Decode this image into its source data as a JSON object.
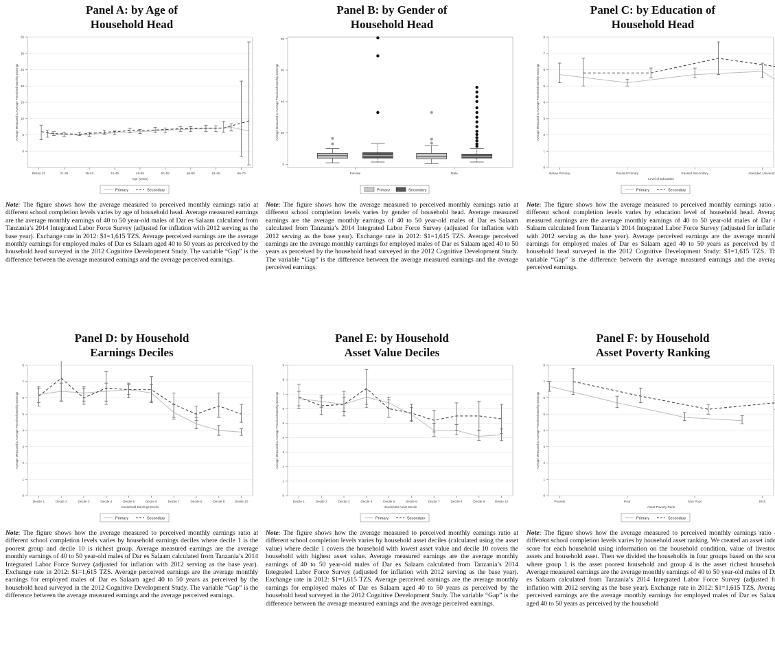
{
  "panels": [
    {
      "id": "A",
      "title_line1": "Panel A: by Age of",
      "title_line2": "Household Head",
      "note_label": "Note",
      "note_text": ": The figure shows how the average measured to perceived monthly earnings ratio at different school completion levels varies by age of household head. Average measured earnings are the average monthly earnings of 40 to 50 year-old males of Dar es Salaam calculated from Tanzania’s 2014 Integrated Labor Force Survey (adjusted for inflation with 2012 serving as the base year). Exchange rate in 2012: $1=1,615 TZS. Average perceived earnings are the average monthly earnings for employed males of Dar es Salaam aged 40 to 50 years as perceived by the household head surveyed in the 2012 Cognitive Development Study. The variable “Gap” is the difference between the average measured earnings and the average perceived earnings."
    },
    {
      "id": "B",
      "title_line1": "Panel B: by Gender of",
      "title_line2": "Household Head",
      "note_label": "Note",
      "note_text": ": The figure shows how the average measured to perceived monthly earnings ratio at different school completion levels varies by gender of household head. Average measured earnings are the average monthly earnings of 40 to 50 year-old males of Dar es Salaam calculated from Tanzania’s 2014 Integrated Labor Force Survey (adjusted for inflation with 2012 serving as the base year). Exchange rate in 2012: $1=1,615 TZS. Average perceived earnings are the average monthly earnings for employed males of Dar es Salaam aged 40 to 50 years as perceived by the household head surveyed in the 2012 Cognitive Development Study. The variable “Gap” is the difference between the average measured earnings and the average perceived earnings."
    },
    {
      "id": "C",
      "title_line1": "Panel C: by Education of",
      "title_line2": "Household Head",
      "note_label": "Note",
      "note_text": ": The figure shows how the average measured to perceived monthly earnings ratio at different school completion levels varies by education level of household head. Average measured earnings are the average monthly earnings of 40 to 50 year-old males of Dar es Salaam calculated from Tanzania’s 2014 Integrated Labor Force Survey (adjusted for inflation with 2012 serving as the base year). Average perceived earnings are the average monthly earnings for employed males of Dar es Salaam aged 40 to 50 years as perceived by the household head surveyed in the 2012 Cognitive Development Study: $1=1,615 TZS. The variable “Gap” is the difference between the average measured earnings and the average perceived earnings."
    },
    {
      "id": "D",
      "title_line1": "Panel D: by Household",
      "title_line2": "Earnings Deciles",
      "note_label": "Note",
      "note_text": ": The figure shows how the average measured to perceived monthly earnings ratio at different school completion levels varies by household earnings deciles where decile 1 is the poorest group and decile 10 is richest group. Average measured earnings are the average monthly earnings of 40 to 50 year-old males of Dar es Salaam calculated from Tanzania’s 2014 Integrated Labor Force Survey (adjusted for inflation with 2012 serving as the base year). Exchange rate in 2012: $1=1,615 TZS. Average perceived earnings are the average monthly earnings for employed males of Dar es Salaam aged 40 to 50 years as perceived by the household head surveyed in the 2012 Cognitive Development Study. The variable “Gap” is the difference between the average measured earnings and the average perceived earnings."
    },
    {
      "id": "E",
      "title_line1": "Panel E: by Household",
      "title_line2": "Asset Value Deciles",
      "note_label": "Note",
      "note_text": ": The figure shows how the average measured to perceived monthly earnings ratio at different school completion levels varies by household asset deciles (calculated using the asset value) where decile 1 covers the household with lowest asset value and decile 10 covers the household with highest asset value. Average measured earnings are the average monthly earnings of 40 to 50 year-old males of Dar es Salaam calculated from Tanzania’s 2014 Integrated Labor Force Survey (adjusted for inflation with 2012 serving as the base year). Exchange rate in 2012: $1=1,615 TZS. Average perceived earnings are the average monthly earnings for employed males of Dar es Salaam aged 40 to 50 years as perceived by the household head surveyed in the 2012 Cognitive Development Study. The variable “Gap” is the difference between the average measured earnings and the average perceived earnings."
    },
    {
      "id": "F",
      "title_line1": "Panel F: by Household",
      "title_line2": "Asset Poverty Ranking",
      "note_label": "Note",
      "note_text": ": The figure shows how the average measured to perceived monthly earnings ratio at different school completion levels varies by household asset ranking. We created an asset index score for each household using information on the household condition, value of livestock assets and household asset. Then we divided the households in four groups based on the score where group 1 is the asset poorest household and group 4 is the asset richest household. Average measured earnings are the average monthly earnings of 40 to 50 year-old males of Dar es Salaam calculated from Tanzania’s 2014 Integrated Labor Force Survey (adjusted for inflation with 2012 serving as the base year). Exchange rate in 2012: $1=1,615 TZS. Average perceived earnings are the average monthly earnings for employed males of Dar es Salaam aged 40 to 50 years as perceived by the household"
    }
  ],
  "chart_data": [
    {
      "panel": "A",
      "type": "line",
      "ylabel": "Average Measured to Average Perceived Monthly Earnings",
      "xlabel": "Age (years)",
      "ylim": [
        -5,
        35
      ],
      "yticks": [
        0,
        5,
        10,
        15,
        20,
        25,
        30,
        35
      ],
      "categories": [
        "Below 31",
        "31-35",
        "36-40",
        "41-45",
        "46-50",
        "51-55",
        "56-60",
        "61-65",
        "66-70"
      ],
      "grid": true,
      "legend": {
        "placement": "bottom",
        "entries": [
          "Primary",
          "Secondary"
        ]
      },
      "series": [
        {
          "name": "Primary",
          "style": "solid",
          "values": [
            5.5,
            5,
            5.2,
            5.6,
            6,
            6.4,
            6.8,
            7,
            7.3,
            6.2
          ],
          "x": [
            0.35,
            1,
            2,
            3,
            4,
            5,
            6,
            7,
            7.6,
            8.3
          ],
          "low": [
            4.3,
            4.5,
            4.6,
            5,
            5.4,
            5.6,
            6,
            6,
            6.2,
            null
          ],
          "high": [
            6.5,
            5.8,
            5.8,
            6.2,
            6.7,
            7.1,
            7.5,
            7.8,
            8.4,
            null
          ]
        },
        {
          "name": "Secondary",
          "style": "dashed",
          "values": [
            6,
            5.4,
            5.2,
            5.8,
            6.3,
            6.5,
            6.9,
            7,
            7.1,
            9.3
          ],
          "x": [
            0.1,
            0.6,
            1.6,
            2.6,
            3.6,
            4.6,
            5.6,
            6.6,
            7.3,
            8.3
          ],
          "low": [
            3.5,
            4.8,
            4.8,
            5.2,
            5.6,
            5.7,
            6.1,
            6,
            5.8,
            -4.2
          ],
          "high": [
            8,
            6,
            5.8,
            6.4,
            7,
            7.3,
            7.6,
            8,
            9.2,
            33.5
          ]
        }
      ],
      "extra_bars": [
        {
          "x": 8,
          "low": -1.5,
          "high": 21.5
        }
      ]
    },
    {
      "panel": "B",
      "type": "box",
      "ylabel": "Average Measured to Average Perceived Monthly Earnings",
      "ylim": [
        -2,
        81
      ],
      "yticks": [
        0,
        20,
        40,
        60,
        80
      ],
      "categories": [
        "Female",
        "Male"
      ],
      "legend": {
        "placement": "bottom",
        "entries": [
          "Primary",
          "Secondary"
        ]
      },
      "series": [
        {
          "name": "Primary",
          "color": "#c8c8c8",
          "boxes": [
            {
              "category": "Female",
              "q1": 4,
              "median": 5.5,
              "q3": 7,
              "whisker_low": 1,
              "whisker_high": 10,
              "outliers": [
                13,
                16.5
              ]
            },
            {
              "category": "Male",
              "q1": 3.5,
              "median": 5,
              "q3": 7,
              "whisker_low": 0.5,
              "whisker_high": 12,
              "outliers": [
                13.5,
                16,
                33
              ]
            }
          ]
        },
        {
          "name": "Secondary",
          "color": "#555555",
          "boxes": [
            {
              "category": "Female",
              "q1": 4,
              "median": 5.5,
              "q3": 7.5,
              "whisker_low": 1.5,
              "whisker_high": 13.5,
              "outliers": [
                33,
                69,
                80.5
              ]
            },
            {
              "category": "Male",
              "q1": 4,
              "median": 5,
              "q3": 6.5,
              "whisker_low": 1.5,
              "whisker_high": 10,
              "outliers": [
                11.5,
                13,
                15,
                17,
                19,
                21,
                24,
                27,
                30,
                33,
                36,
                40,
                43,
                46,
                49
              ]
            }
          ]
        }
      ]
    },
    {
      "panel": "C",
      "type": "line",
      "ylabel": "Average Measured to Average Perceived Monthly Earnings",
      "xlabel": "Level of Education",
      "ylim": [
        0,
        8
      ],
      "yticks": [
        0,
        1,
        2,
        3,
        4,
        5,
        6,
        7,
        8
      ],
      "categories": [
        "Below Primary",
        "Passed Primary",
        "Passed Secondary",
        "Attended University"
      ],
      "grid": true,
      "legend": {
        "placement": "bottom",
        "entries": [
          "Primary",
          "Secondary"
        ]
      },
      "series": [
        {
          "name": "Primary",
          "style": "solid",
          "x": [
            0,
            1,
            2,
            3,
            3.3
          ],
          "values": [
            5.7,
            5.2,
            5.7,
            5.9,
            5.1
          ],
          "low": [
            5.2,
            5,
            5.5,
            5.5,
            4.5
          ],
          "high": [
            6.4,
            5.4,
            6.1,
            6.4,
            5.7
          ]
        },
        {
          "name": "Secondary",
          "style": "dashed",
          "x": [
            0.35,
            1.35,
            2.35,
            3.35
          ],
          "values": [
            5.8,
            5.8,
            6.7,
            6.1
          ],
          "low": [
            5,
            5.5,
            5.7,
            5.3
          ],
          "high": [
            6.7,
            6.1,
            7.7,
            6.9
          ]
        }
      ]
    },
    {
      "panel": "D",
      "type": "line",
      "ylabel": "Average Measured to Average Perceived Monthly Earnings",
      "xlabel": "Household Earnings Decile",
      "ylim": [
        0,
        8
      ],
      "yticks": [
        0,
        1,
        2,
        3,
        4,
        5,
        6,
        7,
        8
      ],
      "categories": [
        "Decile 1",
        "Decile 2",
        "Decile 3",
        "Decile 4",
        "Decile 5",
        "Decile 6",
        "Decile 7",
        "Decile 8",
        "Decile 9",
        "Decile 10"
      ],
      "grid": true,
      "legend": {
        "placement": "bottom",
        "entries": [
          "Primary",
          "Secondary"
        ]
      },
      "series": [
        {
          "name": "Primary",
          "style": "solid",
          "values": [
            6.2,
            6.4,
            6.3,
            6.4,
            6.5,
            6.3,
            5.1,
            4.4,
            4.0,
            3.9
          ],
          "low": [
            5.7,
            5.8,
            5.8,
            5.8,
            6,
            5.7,
            4.7,
            4.1,
            3.7,
            3.7
          ],
          "high": [
            6.6,
            6.9,
            6.7,
            6.9,
            6.9,
            6.8,
            5.6,
            4.8,
            4.3,
            4.1
          ]
        },
        {
          "name": "Secondary",
          "style": "dashed",
          "values": [
            6.1,
            7.2,
            6.0,
            6.6,
            6.5,
            6.5,
            5.6,
            5.0,
            5.5,
            5.0
          ],
          "low": [
            5.5,
            5.8,
            5.6,
            5.6,
            6.2,
            5.8,
            4.8,
            4.6,
            4.8,
            4.5
          ],
          "high": [
            6.7,
            8.7,
            6.6,
            7.6,
            6.8,
            7.3,
            6.3,
            5.5,
            6.3,
            5.6
          ]
        }
      ]
    },
    {
      "panel": "E",
      "type": "line",
      "ylabel": "Average Measured to Average Perceived Monthly Earnings",
      "xlabel": "Household Asset Decile",
      "ylim": [
        0,
        9
      ],
      "yticks": [
        0,
        1,
        2,
        3,
        4,
        5,
        6,
        7,
        8,
        9
      ],
      "categories": [
        "Decile 1",
        "Decile 2",
        "Decile 3",
        "Decile 4",
        "Decile 5",
        "Decile 6",
        "Decile 7",
        "Decile 8",
        "Decile 9",
        "Decile 10"
      ],
      "grid": true,
      "legend": {
        "placement": "bottom",
        "entries": [
          "Primary",
          "Secondary"
        ]
      },
      "series": [
        {
          "name": "Primary",
          "style": "solid",
          "values": [
            6.7,
            6.5,
            6.3,
            6.8,
            6.4,
            5.6,
            4.5,
            4.5,
            4.1,
            4.2
          ],
          "low": [
            6.2,
            6.1,
            5.8,
            6.3,
            6,
            5.2,
            4.1,
            4.2,
            3.8,
            3.8
          ],
          "high": [
            7.2,
            6.9,
            6.8,
            7.3,
            6.8,
            6.1,
            5,
            4.9,
            4.5,
            4.6
          ]
        },
        {
          "name": "Secondary",
          "style": "dashed",
          "values": [
            6.8,
            6.2,
            6.3,
            7.4,
            6.0,
            5.7,
            5.2,
            5.5,
            5.5,
            5.3
          ],
          "low": [
            6,
            5.6,
            5.5,
            6.1,
            5.4,
            5.1,
            4.4,
            4.5,
            4.5,
            4.3
          ],
          "high": [
            7.7,
            6.8,
            7.2,
            8.7,
            6.6,
            6.3,
            5.9,
            6.4,
            6.5,
            6.3
          ]
        }
      ]
    },
    {
      "panel": "F",
      "type": "line",
      "ylabel": "Average Measured to Average Perceived Monthly Earnings",
      "xlabel": "Asset Poverty Rank",
      "ylim": [
        0,
        8
      ],
      "yticks": [
        0,
        1,
        2,
        3,
        4,
        5,
        6,
        7,
        8
      ],
      "categories": [
        "Poorest",
        "Poor",
        "Non Poor",
        "Rich"
      ],
      "grid": true,
      "legend": {
        "placement": "bottom",
        "entries": [
          "Primary",
          "Secondary"
        ]
      },
      "series": [
        {
          "name": "Primary",
          "style": "solid",
          "x": [
            -0.15,
            0.85,
            1.85,
            2.7
          ],
          "values": [
            6.7,
            5.7,
            4.8,
            4.6
          ],
          "low": [
            6.4,
            5.4,
            4.6,
            4.4
          ],
          "high": [
            7.0,
            6.1,
            5.1,
            4.9
          ]
        },
        {
          "name": "Secondary",
          "style": "dashed",
          "x": [
            0.2,
            1.2,
            2.2,
            3.2
          ],
          "values": [
            7.0,
            6.1,
            5.3,
            5.7
          ],
          "low": [
            6.2,
            5.7,
            5.0,
            5.3
          ],
          "high": [
            7.8,
            6.6,
            5.6,
            6.2
          ]
        }
      ]
    }
  ]
}
